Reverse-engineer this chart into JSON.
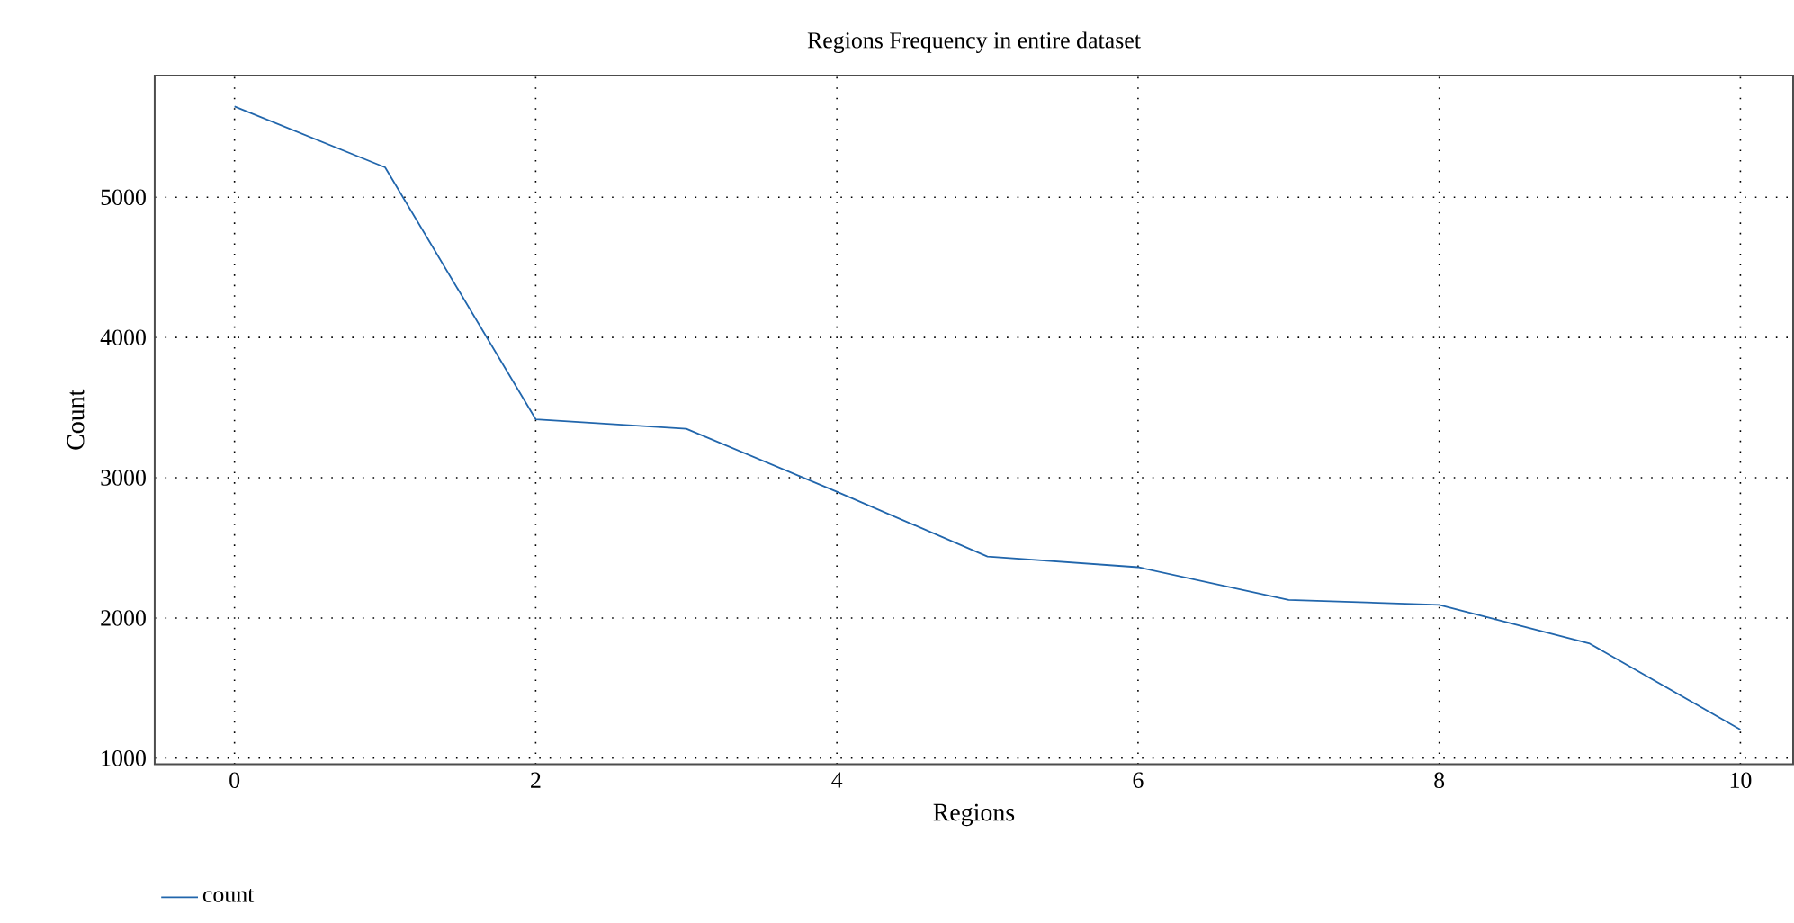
{
  "chart_data": {
    "type": "line",
    "title": "Regions Frequency in entire dataset",
    "xlabel": "Regions",
    "ylabel": "Count",
    "x": [
      0,
      1,
      2,
      3,
      4,
      5,
      6,
      7,
      8,
      9,
      10
    ],
    "series": [
      {
        "name": "count",
        "color": "#2166ac",
        "values": [
          5647,
          5213,
          3417,
          3349,
          2900,
          2438,
          2362,
          2128,
          2094,
          1817,
          1204
        ]
      }
    ],
    "xlim": [
      -0.53,
      10.35
    ],
    "ylim": [
      957,
      5868
    ],
    "xticks": [
      0,
      2,
      4,
      6,
      8,
      10
    ],
    "yticks": [
      1000,
      2000,
      3000,
      4000,
      5000
    ],
    "grid": true,
    "legend": "bottom left",
    "marker": "none",
    "line_style": "solid"
  }
}
